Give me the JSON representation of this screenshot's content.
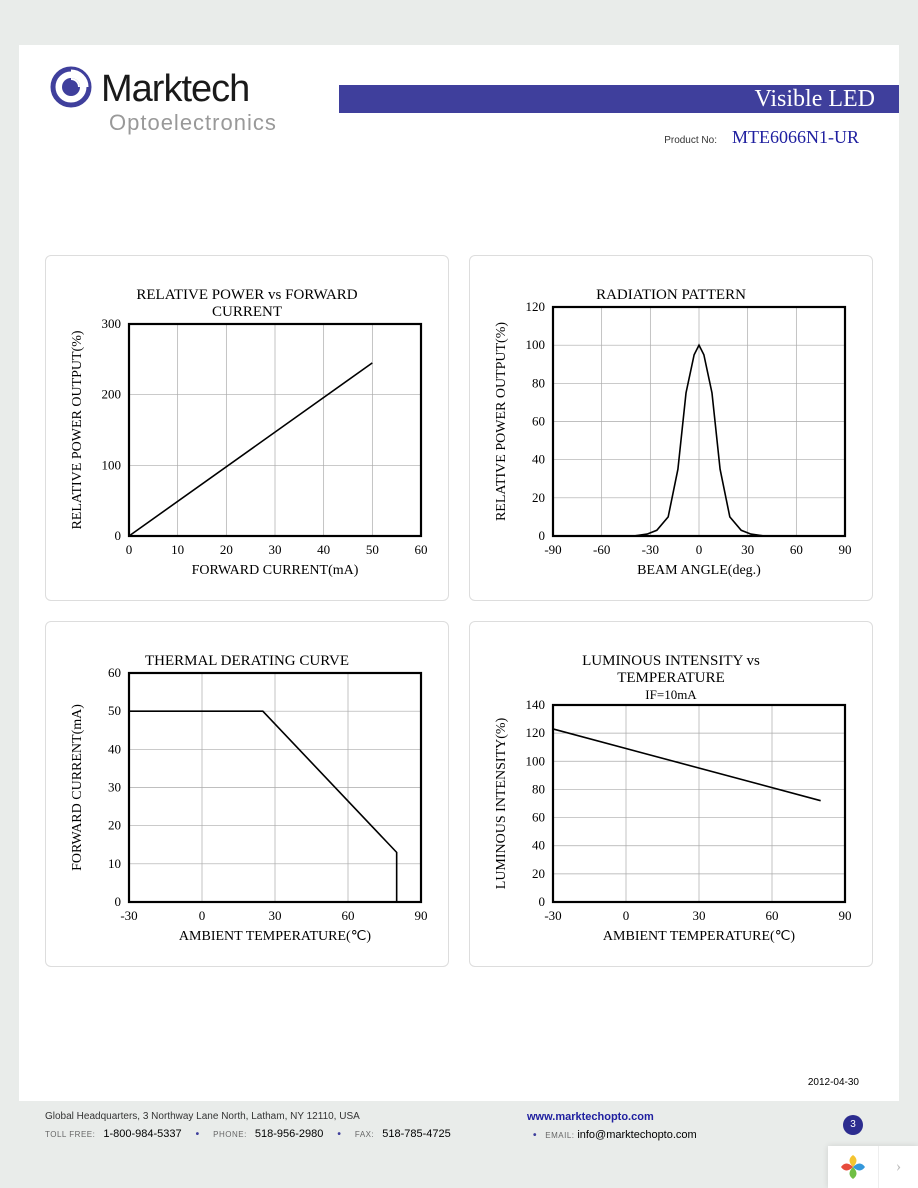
{
  "brand": {
    "name_main": "Marktech",
    "name_sub": "Optoelectronics",
    "swirl_color": "#3f3f9c"
  },
  "header": {
    "bar_color": "#3f3f9c",
    "category": "Visible LED",
    "product_label": "Product No:",
    "product_value": "MTE6066N1-UR",
    "product_value_color": "#2020a0"
  },
  "charts": {
    "c1": {
      "type": "line",
      "title": "RELATIVE POWER vs FORWARD CURRENT",
      "xlabel": "FORWARD CURRENT(mA)",
      "ylabel": "RELATIVE POWER OUTPUT(%)",
      "xlim": [
        0,
        60
      ],
      "xtick_step": 10,
      "ylim": [
        0,
        300
      ],
      "ytick_step": 100,
      "x": [
        0,
        50
      ],
      "y": [
        0,
        245
      ],
      "line_color": "#000000",
      "line_width": 1.6,
      "border_color": "#000000",
      "border_width": 2.2,
      "grid_color": "#aaaaaa",
      "tick_fontsize": 13,
      "label_fontsize": 14,
      "title_fontsize": 15
    },
    "c2": {
      "type": "line",
      "title": "RADIATION PATTERN",
      "xlabel": "BEAM ANGLE(deg.)",
      "ylabel": "RELATIVE POWER OUTPUT(%)",
      "xlim": [
        -90,
        90
      ],
      "xtick_step": 30,
      "ylim": [
        0,
        120
      ],
      "ytick_step": 20,
      "x": [
        -90,
        -40,
        -32,
        -26,
        -19,
        -13,
        -8,
        -3,
        0,
        3,
        8,
        13,
        19,
        26,
        32,
        40,
        90
      ],
      "y": [
        0,
        0,
        1,
        3,
        10,
        35,
        75,
        95,
        100,
        95,
        75,
        35,
        10,
        3,
        1,
        0,
        0
      ],
      "line_color": "#000000",
      "line_width": 1.6,
      "border_color": "#000000",
      "border_width": 2.2,
      "grid_color": "#aaaaaa",
      "tick_fontsize": 13,
      "label_fontsize": 14,
      "title_fontsize": 15
    },
    "c3": {
      "type": "line",
      "title": "THERMAL DERATING CURVE",
      "xlabel": "AMBIENT TEMPERATURE(℃)",
      "ylabel": "FORWARD CURRENT(mA)",
      "xlim": [
        -30,
        90
      ],
      "xtick_step": 30,
      "ylim": [
        0,
        60
      ],
      "ytick_step": 10,
      "x": [
        -30,
        25,
        80,
        80
      ],
      "y": [
        50,
        50,
        13,
        0
      ],
      "line_color": "#000000",
      "line_width": 1.6,
      "border_color": "#000000",
      "border_width": 2.2,
      "grid_color": "#aaaaaa",
      "tick_fontsize": 13,
      "label_fontsize": 14,
      "title_fontsize": 15
    },
    "c4": {
      "type": "line",
      "title": "LUMINOUS INTENSITY vs TEMPERATURE",
      "subtitle": "IF=10mA",
      "xlabel": "AMBIENT TEMPERATURE(℃)",
      "ylabel": "LUMINOUS INTENSITY(%)",
      "xlim": [
        -30,
        90
      ],
      "xtick_step": 30,
      "ylim": [
        0,
        140
      ],
      "ytick_step": 20,
      "x": [
        -30,
        80
      ],
      "y": [
        123,
        72
      ],
      "line_color": "#000000",
      "line_width": 1.6,
      "border_color": "#000000",
      "border_width": 2.2,
      "grid_color": "#aaaaaa",
      "tick_fontsize": 13,
      "label_fontsize": 14,
      "title_fontsize": 15
    }
  },
  "date": "2012-04-30",
  "footer": {
    "address": "Global Headquarters, 3 Northway Lane North, Latham, NY 12110, USA",
    "tollfree_label": "TOLL FREE:",
    "tollfree": "1-800-984-5337",
    "phone_label": "PHONE:",
    "phone": "518-956-2980",
    "fax_label": "FAX:",
    "fax": "518-785-4725",
    "email_label": "EMAIL:",
    "email": "info@marktechopto.com",
    "url": "www.marktechopto.com",
    "url_color": "#2020a0",
    "page_number": "3",
    "badge_color": "#2c2c8f",
    "bg_color": "#e9ecea"
  }
}
